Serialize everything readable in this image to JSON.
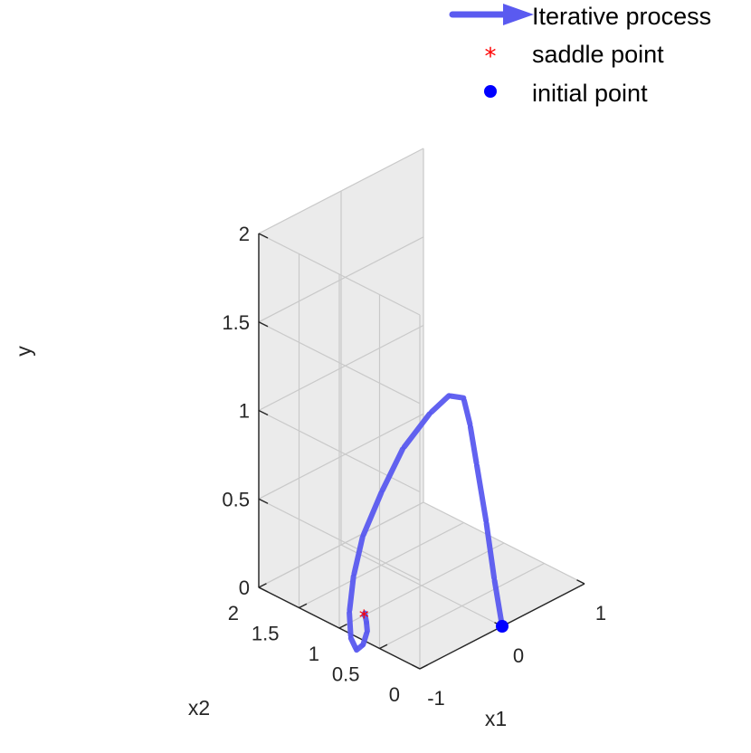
{
  "chart_data": {
    "type": "line3d",
    "xlabel": "x1",
    "ylabel": "x2",
    "zlabel": "y",
    "xlim": [
      -1,
      1
    ],
    "ylim": [
      0,
      2
    ],
    "zlim": [
      0,
      2
    ],
    "x_ticks": [
      -1,
      0,
      1
    ],
    "y_ticks": [
      0,
      0.5,
      1,
      1.5,
      2
    ],
    "z_ticks": [
      0,
      0.5,
      1,
      1.5,
      2
    ],
    "x_tick_labels": [
      "-1",
      "0",
      "1"
    ],
    "y_tick_labels": [
      "0",
      "0.5",
      "1",
      "1.5",
      "2"
    ],
    "z_tick_labels": [
      "0",
      "0.5",
      "1",
      "1.5",
      "2"
    ],
    "grid": true,
    "legend_position": "top-right",
    "legend": [
      {
        "label": "Iterative process",
        "marker": "arrow",
        "color": "#5a5af0"
      },
      {
        "label": "saddle point",
        "marker": "*",
        "color": "#ff0000"
      },
      {
        "label": "initial point",
        "marker": "o",
        "color": "#0000ff"
      }
    ],
    "series": [
      {
        "name": "Iterative process",
        "color": "#5a5af0",
        "x": [
          0,
          0,
          0,
          0,
          0,
          0,
          -0.04,
          -0.12,
          -0.28,
          -0.44,
          -0.62,
          -0.72,
          -0.8,
          -0.84,
          -0.82,
          -0.76,
          -0.7,
          -0.68,
          -0.68,
          -0.69,
          -0.7
        ],
        "y": [
          0,
          0.1,
          0.2,
          0.32,
          0.4,
          0.48,
          0.62,
          0.78,
          0.95,
          1.05,
          1.1,
          1.11,
          1.08,
          1.02,
          0.97,
          0.95,
          0.96,
          0.99,
          1.01,
          1.0,
          1.0
        ],
        "z": [
          0,
          0.25,
          0.55,
          0.85,
          1.05,
          1.18,
          1.17,
          1.05,
          0.85,
          0.62,
          0.4,
          0.2,
          0.02,
          -0.1,
          -0.16,
          -0.14,
          -0.08,
          -0.04,
          0.0,
          0.01,
          0.0
        ]
      }
    ],
    "saddle_point": {
      "x": -0.7,
      "y": 1,
      "z": 0,
      "color": "#ff0000"
    },
    "initial_point": {
      "x": 0,
      "y": 0,
      "z": 0,
      "color": "#0000ff"
    }
  }
}
